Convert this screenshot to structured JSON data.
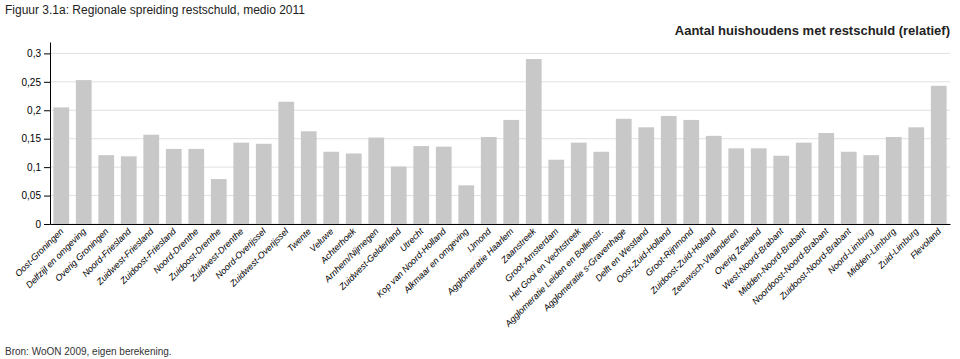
{
  "chart_data": {
    "type": "bar",
    "title": "Figuur 3.1a: Regionale spreiding restschuld, medio 2011",
    "subtitle": "Aantal huishoudens met restschuld (relatief)",
    "annotations": [
      "Bron: WoON 2009, eigen berekening."
    ],
    "categories": [
      "Oost-Groningen",
      "Delfzijl en omgeving",
      "Overig Groningen",
      "Noord-Friesland",
      "Zuidwest-Friesland",
      "Zuidoost-Friesland",
      "Noord-Drenthe",
      "Zuidoost-Drenthe",
      "Zuidwest-Drenthe",
      "Noord-Overijssel",
      "Zuidwest-Overijssel",
      "Twente",
      "Veluwe",
      "Achterhoek",
      "Arnhem/Nijmegen",
      "Zuidwest-Gelderland",
      "Utrecht",
      "Kop van Noord-Holland",
      "Alkmaar en omgeving",
      "IJmond",
      "Agglomeratie Haarlem",
      "Zaanstreek",
      "Groot-Amsterdam",
      "Het Gooi en Vechtstreek",
      "Agglomeratie Leiden en Bollenstr.",
      "Agglomeratie s-Gravenhage",
      "Delft en Westland",
      "Oost-Zuid-Holland",
      "Groot-Rijnmond",
      "Zuidoost-Zuid-Holland",
      "Zeeuwsch-Vlaanderen",
      "Overig Zeeland",
      "West-Noord-Brabant",
      "Midden-Noord-Brabant",
      "Noordoost-Noord-Brabant",
      "Zuidoost-Noord-Brabant",
      "Noord-Limburg",
      "Midden-Limburg",
      "Zuid-Limburg",
      "Flevoland"
    ],
    "values": [
      0.205,
      0.253,
      0.121,
      0.119,
      0.157,
      0.132,
      0.132,
      0.079,
      0.143,
      0.141,
      0.215,
      0.163,
      0.127,
      0.124,
      0.152,
      0.101,
      0.137,
      0.136,
      0.068,
      0.153,
      0.183,
      0.29,
      0.113,
      0.143,
      0.127,
      0.185,
      0.17,
      0.19,
      0.183,
      0.155,
      0.133,
      0.133,
      0.12,
      0.143,
      0.16,
      0.127,
      0.121,
      0.153,
      0.17,
      0.243
    ],
    "color": "#c8c8c8",
    "ylim": [
      0,
      0.32
    ],
    "yticks": [
      0,
      {
        "value": 0.05,
        "label": "0,05"
      },
      {
        "value": 0.1,
        "label": "0,1"
      },
      {
        "value": 0.15,
        "label": "0,15"
      },
      {
        "value": 0.2,
        "label": "0,2"
      },
      {
        "value": 0.25,
        "label": "0,25"
      },
      {
        "value": 0.3,
        "label": "0,3"
      }
    ],
    "grid": true
  }
}
